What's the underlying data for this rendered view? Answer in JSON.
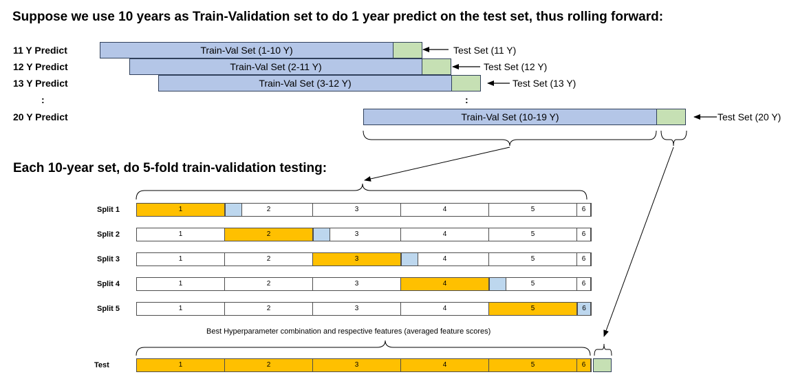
{
  "title": "Suppose we use 10 years as Train-Validation set to do 1 year predict on the test set, thus rolling forward:",
  "rolling_rows": [
    {
      "label": "11 Y Predict",
      "train": "Train-Val Set (1-10 Y)",
      "test": "Test Set (11 Y)"
    },
    {
      "label": "12 Y Predict",
      "train": "Train-Val Set (2-11 Y)",
      "test": "Test Set (12 Y)"
    },
    {
      "label": "13 Y Predict",
      "train": "Train-Val Set (3-12 Y)",
      "test": "Test Set (13 Y)"
    },
    {
      "label": "20 Y Predict",
      "train": "Train-Val Set (10-19 Y)",
      "test": "Test Set (20 Y)"
    }
  ],
  "ellipsis": ":",
  "subtitle": "Each 10-year set, do 5-fold train-validation testing:",
  "splits": [
    {
      "label": "Split 1",
      "train_fold": 1
    },
    {
      "label": "Split 2",
      "train_fold": 2
    },
    {
      "label": "Split 3",
      "train_fold": 3
    },
    {
      "label": "Split 4",
      "train_fold": 4
    },
    {
      "label": "Split 5",
      "train_fold": 5
    }
  ],
  "fold_labels": [
    "1",
    "2",
    "3",
    "4",
    "5",
    "6"
  ],
  "caption": "Best Hyperparameter combination and respective features (averaged feature scores)",
  "test_row_label": "Test",
  "colors": {
    "train_val": "#b4c6e7",
    "test": "#c6e0b4",
    "train_fold": "#ffc000",
    "validation": "#bdd7ee"
  }
}
